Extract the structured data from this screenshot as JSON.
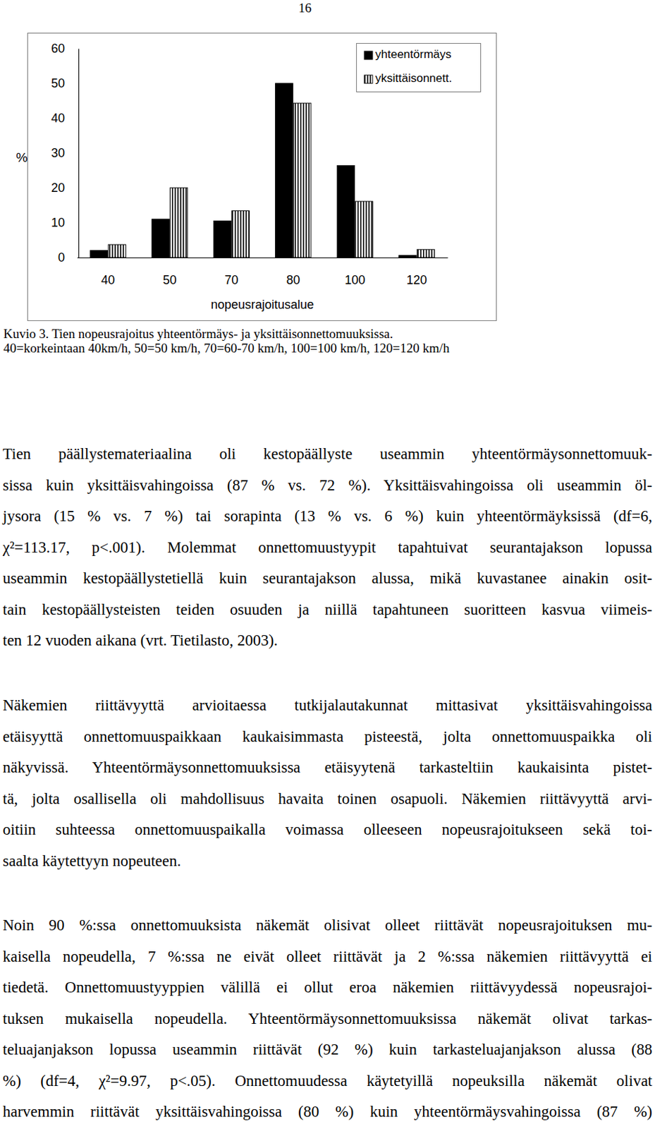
{
  "page_number": "16",
  "chart_data": {
    "type": "bar",
    "categories": [
      "40",
      "50",
      "70",
      "80",
      "100",
      "120"
    ],
    "series": [
      {
        "name": "yhteentörmäys",
        "color": "#000000",
        "values": [
          2,
          11,
          10.5,
          50,
          26.4,
          0.6
        ]
      },
      {
        "name": "yksittäisonnett.",
        "color": "#000000",
        "values": [
          3.7,
          20,
          13.4,
          44.3,
          16.1,
          2.3
        ]
      }
    ],
    "ylim": [
      0,
      60
    ],
    "yticks": [
      0,
      10,
      20,
      30,
      40,
      50,
      60
    ],
    "y_label": "%",
    "x_label": "nopeusrajoitusalue",
    "legend": "upper right",
    "grid": false
  },
  "caption": [
    "Kuvio 3. Tien nopeusrajoitus yhteentörmäys- ja yksittäisonnettomuuksissa.",
    "40=korkeintaan 40km/h, 50=50 km/h, 70=60-70 km/h, 100=100 km/h, 120=120 km/h"
  ],
  "paragraphs": [
    [
      "Tien päällystemateriaalina oli kestopäällyste useammin yhteentörmäysonnettomuuk-",
      "sissa kuin yksittäisvahingoissa (87 % vs. 72 %). Yksittäisvahingoissa oli useammin öl-",
      "jysora (15 % vs. 7 %) tai sorapinta (13 % vs. 6 %) kuin yhteentörmäyksissä (df=6,",
      "χ²=113.17, p<.001). Molemmat onnettomuustyypit tapahtuivat seurantajakson lopussa",
      "useammin kestopäällystetiellä kuin seurantajakson alussa, mikä kuvastanee ainakin osit-",
      "tain kestopäällysteisten teiden osuuden ja niillä tapahtuneen suoritteen kasvua viimeis-",
      "ten 12 vuoden aikana (vrt. Tietilasto, 2003)."
    ],
    [
      "Näkemien riittävyyttä arvioitaessa tutkijalautakunnat mittasivat yksittäisvahingoissa",
      "etäisyyttä onnettomuuspaikkaan kaukaisimmasta pisteestä, jolta onnettomuuspaikka oli",
      "näkyvissä. Yhteentörmäysonnettomuuksissa etäisyytenä tarkasteltiin kaukaisinta pistet-",
      "tä, jolta osallisella oli mahdollisuus havaita toinen osapuoli. Näkemien riittävyyttä arvi-",
      "oitiin suhteessa onnettomuuspaikalla voimassa olleeseen nopeusrajoitukseen sekä toi-",
      "saalta käytettyyn nopeuteen."
    ],
    [
      "Noin 90 %:ssa onnettomuuksista näkemät olisivat olleet riittävät nopeusrajoituksen mu-",
      "kaisella nopeudella, 7 %:ssa ne eivät olleet riittävät ja 2 %:ssa näkemien riittävyyttä ei",
      "tiedetä. Onnettomuustyyppien välillä ei ollut eroa näkemien riittävyydessä nopeusrajoi-",
      "tuksen mukaisella nopeudella. Yhteentörmäysonnettomuuksissa näkemät olivat tarkas-",
      "teluajanjakson lopussa useammin riittävät (92 %) kuin tarkasteluajanjakson alussa (88",
      "%) (df=4, χ²=9.97, p<.05). Onnettomuudessa käytetyillä nopeuksilla näkemät olivat",
      "harvemmin riittävät yksittäisvahingoissa (80 %) kuin yhteentörmäysvahingoissa (87 %)"
    ]
  ]
}
